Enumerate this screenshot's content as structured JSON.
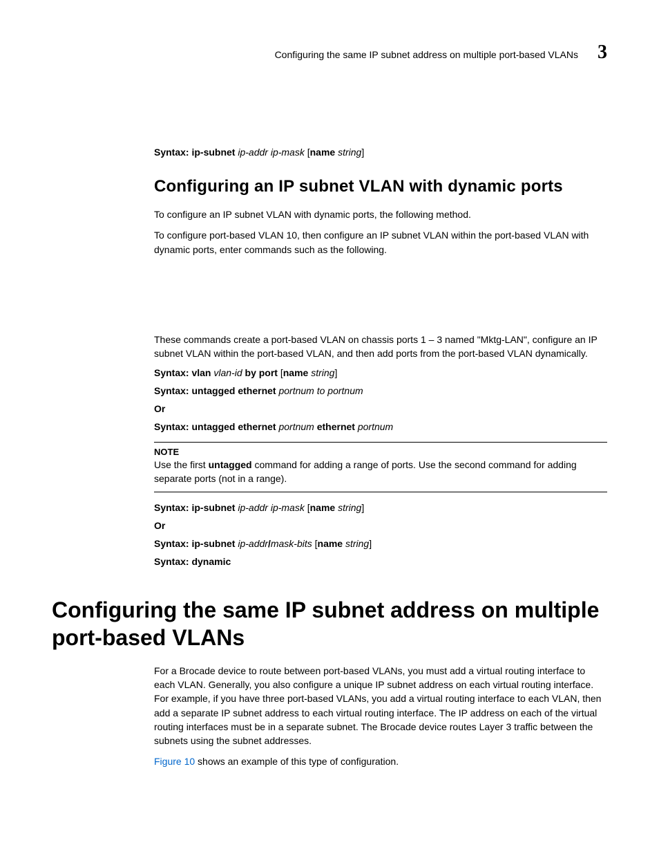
{
  "typography": {
    "body_font": "Arial",
    "body_size_pt": 10.5,
    "h1_size_pt": 24,
    "h2_size_pt": 18,
    "running_head_num_size_pt": 21,
    "link_color": "#0066cc",
    "text_color": "#000000",
    "background_color": "#ffffff",
    "rule_color": "#000000"
  },
  "header": {
    "title": "Configuring the same IP subnet address on multiple port-based VLANs",
    "chapter_number": "3"
  },
  "lines": {
    "syntax1": {
      "label": "Syntax: ",
      "cmd": "ip-subnet",
      "args_ital": " ip-addr ip-mask ",
      "bracket_open": "[",
      "name_kw": "name",
      "name_arg": " string",
      "bracket_close": "]"
    },
    "h2": "Configuring an IP subnet VLAN with dynamic ports",
    "p1": "To configure an IP subnet VLAN with dynamic ports, the following method.",
    "p2": "To configure port-based VLAN 10, then configure an IP subnet VLAN within the port-based VLAN with dynamic ports, enter commands such as the following.",
    "p3": "These commands create a port-based VLAN on chassis ports 1 – 3 named \"Mktg-LAN\", configure an IP subnet VLAN within the port-based VLAN, and then add ports from the port-based VLAN dynamically.",
    "syntax2": {
      "label": "Syntax: ",
      "cmd": "vlan",
      "arg1_ital": " vlan-id ",
      "mid": "by port ",
      "bracket_open": "[",
      "name_kw": "name",
      "name_arg": " string",
      "bracket_close": "]"
    },
    "syntax3": {
      "label": "Syntax: ",
      "cmd": "untagged ethernet",
      "args_ital": " portnum to portnum"
    },
    "or1": "Or",
    "syntax4": {
      "label": "Syntax: ",
      "cmd": "untagged ethernet",
      "arg1_ital": " portnum ",
      "mid": "ethernet",
      "arg2_ital": " portnum"
    },
    "note_head": "NOTE",
    "note_body_pre": "Use the first ",
    "note_body_bold": "untagged",
    "note_body_post": " command for adding a range of ports. Use the second command for adding separate ports (not in a range).",
    "syntax5": {
      "label": "Syntax: ",
      "cmd": "ip-subnet",
      "args_ital": " ip-addr ip-mask ",
      "bracket_open": "[",
      "name_kw": "name",
      "name_arg": " string",
      "bracket_close": "]"
    },
    "or2": "Or",
    "syntax6": {
      "label": "Syntax: ",
      "cmd": "ip-subnet",
      "arg_a": " ip-addr",
      "slash": "/",
      "arg_b": "mask-bits ",
      "bracket_open": "[",
      "name_kw": "name",
      "name_arg": " string",
      "bracket_close": "]"
    },
    "syntax7": {
      "label": "Syntax: ",
      "cmd": "dynamic"
    },
    "h1": "Configuring the same IP subnet address on multiple port-based VLANs",
    "p4": "For a Brocade device to route between port-based VLANs, you must add a virtual routing interface to each VLAN. Generally, you also configure a unique IP subnet address on each virtual routing interface. For example, if you have three port-based VLANs, you add a virtual routing interface to each VLAN, then add a separate IP subnet address to each virtual routing interface. The IP address on each of the virtual routing interfaces must be in a separate subnet. The Brocade device routes Layer 3 traffic between the subnets using the subnet addresses.",
    "p5_link": "Figure 10",
    "p5_rest": " shows an example of this type of configuration."
  }
}
